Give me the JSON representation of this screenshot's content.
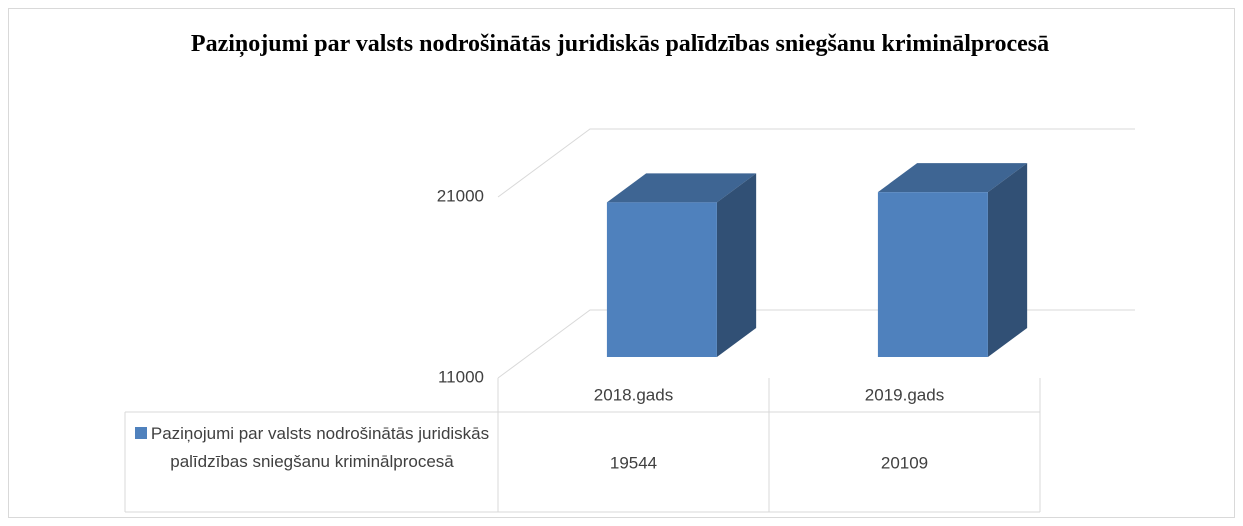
{
  "chart_data": {
    "type": "bar",
    "title": "Paziņojumi par valsts nodrošinātās juridiskās palīdzības sniegšanu kriminālprocesā",
    "categories": [
      "2018.gads",
      "2019.gads"
    ],
    "series": [
      {
        "name": "Paziņojumi par valsts nodrošinātās juridiskās palīdzības sniegšanu kriminālprocesā",
        "color": "#4f81bd",
        "values": [
          19544,
          20109
        ]
      }
    ],
    "ylim": [
      11000,
      21000
    ],
    "yticks": [
      11000,
      21000
    ],
    "grid": true
  }
}
